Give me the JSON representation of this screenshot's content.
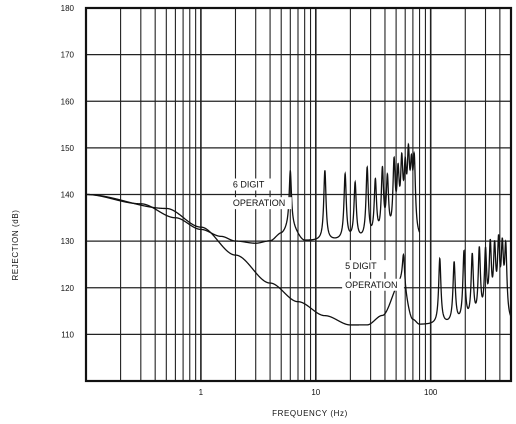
{
  "chart_data": {
    "type": "line",
    "title": "",
    "xlabel": "FREQUENCY (Hz)",
    "ylabel": "REJECTION (dB)",
    "x_scale": "log",
    "xlim": [
      0.1,
      500
    ],
    "ylim": [
      100,
      180
    ],
    "grid": true,
    "legend": "none",
    "xticks": [
      {
        "value": 1,
        "label": "1"
      },
      {
        "value": 10,
        "label": "10"
      },
      {
        "value": 100,
        "label": "100"
      }
    ],
    "yticks": [
      {
        "value": 110,
        "label": "110"
      },
      {
        "value": 120,
        "label": "120"
      },
      {
        "value": 130,
        "label": "130"
      },
      {
        "value": 140,
        "label": "140"
      },
      {
        "value": 150,
        "label": "150"
      },
      {
        "value": 160,
        "label": "160"
      },
      {
        "value": 170,
        "label": "170"
      },
      {
        "value": 180,
        "label": "180"
      }
    ],
    "series": [
      {
        "color": "#111111",
        "base_points": [
          [
            0.1,
            140
          ],
          [
            0.3,
            138
          ],
          [
            0.6,
            135
          ],
          [
            1,
            132.5
          ],
          [
            1.5,
            131
          ],
          [
            2,
            130
          ],
          [
            3,
            129.5
          ],
          [
            4,
            130
          ],
          [
            5,
            131.5
          ],
          [
            6,
            133
          ],
          [
            8,
            130
          ],
          [
            10,
            130
          ],
          [
            20,
            130
          ],
          [
            80,
            130
          ]
        ],
        "peaks": [
          [
            6,
            145
          ],
          [
            12,
            145
          ],
          [
            18,
            144
          ],
          [
            22,
            142
          ],
          [
            28,
            145
          ],
          [
            33,
            142
          ],
          [
            38,
            144
          ],
          [
            42,
            142
          ],
          [
            48,
            145
          ],
          [
            52,
            142
          ],
          [
            56,
            144
          ],
          [
            60,
            142
          ],
          [
            64,
            145
          ],
          [
            68,
            142
          ],
          [
            72,
            145
          ]
        ]
      },
      {
        "color": "#111111",
        "base_points": [
          [
            0.1,
            140
          ],
          [
            0.5,
            137
          ],
          [
            1,
            133
          ],
          [
            2,
            127
          ],
          [
            4,
            121
          ],
          [
            7,
            117
          ],
          [
            12,
            114
          ],
          [
            20,
            112
          ],
          [
            28,
            112
          ],
          [
            38,
            114
          ],
          [
            55,
            121
          ],
          [
            70,
            113
          ],
          [
            80,
            112
          ],
          [
            120,
            112
          ],
          [
            500,
            112
          ]
        ],
        "peaks": [
          [
            58,
            127
          ],
          [
            120,
            126
          ],
          [
            160,
            125
          ],
          [
            195,
            127
          ],
          [
            230,
            126
          ],
          [
            265,
            127
          ],
          [
            300,
            126
          ],
          [
            330,
            127
          ],
          [
            360,
            126
          ],
          [
            390,
            127
          ],
          [
            420,
            126
          ],
          [
            450,
            127
          ]
        ]
      }
    ],
    "annotations": [
      {
        "text": "6 DIGIT",
        "x": 1.9,
        "y": 141.5
      },
      {
        "text": "OPERATION",
        "x": 1.9,
        "y": 137.5
      },
      {
        "text": "5 DIGIT",
        "x": 18,
        "y": 124
      },
      {
        "text": "OPERATION",
        "x": 18,
        "y": 120
      }
    ]
  }
}
